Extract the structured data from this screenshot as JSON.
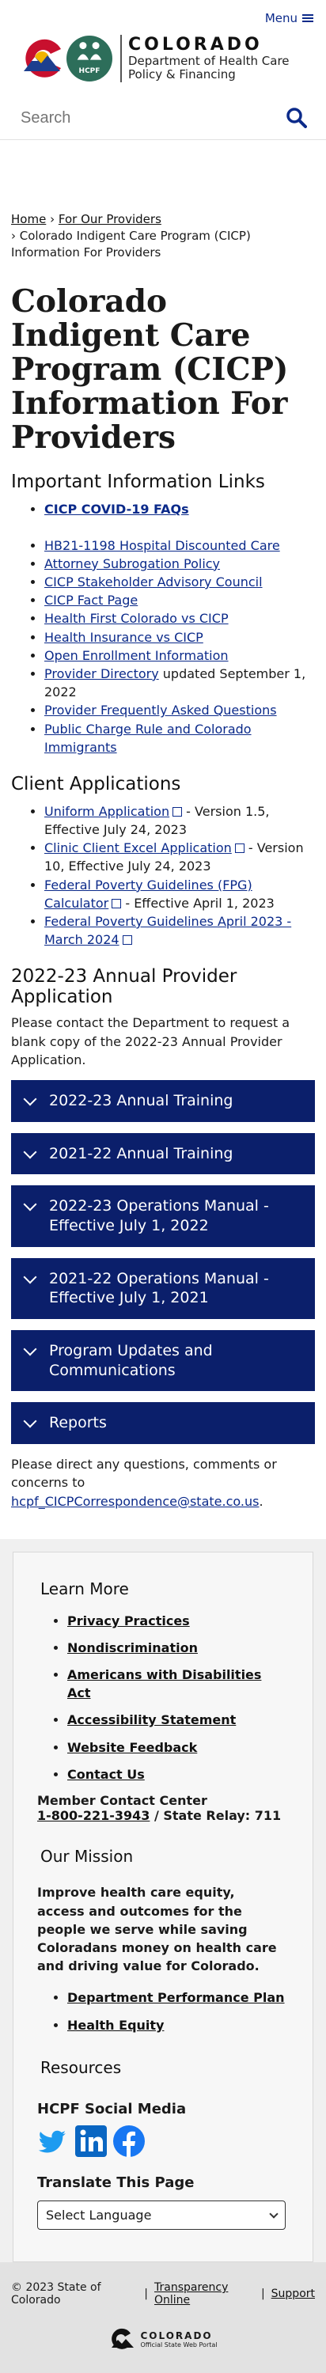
{
  "header": {
    "menu_label": "Menu",
    "logo_title": "COLORADO",
    "logo_sub1": "Department of Health Care",
    "logo_sub2": "Policy & Financing",
    "hcpf_label": "HCPF",
    "search_placeholder": "Search"
  },
  "breadcrumb": {
    "home": "Home",
    "sep": "›",
    "providers": "For Our Providers",
    "current": "› Colorado Indigent Care Program (CICP) Information For Providers"
  },
  "page_title": "Colorado Indigent Care Program (CICP) Information For Providers",
  "important": {
    "heading": "Important Information Links",
    "first": "CICP COVID-19 FAQs",
    "items": [
      "HB21-1198 Hospital Discounted Care",
      "Attorney Subrogation Policy",
      "CICP Stakeholder Advisory Council",
      "CICP Fact Page",
      "Health First Colorado vs CICP",
      "Health Insurance vs CICP",
      "Open Enrollment Information",
      "Provider Directory",
      "Provider Frequently Asked Questions",
      "Public Charge Rule and Colorado Immigrants"
    ],
    "directory_note": " updated September 1, 2022"
  },
  "client": {
    "heading": "Client Applications",
    "items": [
      {
        "link": "Uniform Application",
        "note": " - Version 1.5, Effective July 24, 2023"
      },
      {
        "link": "Clinic Client Excel Application",
        "note": " - Version 10, Effective July 24, 2023"
      },
      {
        "link": "Federal Poverty Guidelines (FPG) Calculator",
        "note": " - Effective April 1, 2023"
      },
      {
        "link": "Federal Poverty Guidelines April 2023 - March 2024",
        "note": ""
      }
    ]
  },
  "annual": {
    "heading": "2022-23 Annual Provider Application",
    "text": "Please contact the Department to request a blank copy of the 2022-23 Annual Provider Application."
  },
  "accordions": [
    "2022-23 Annual Training",
    "2021-22 Annual Training",
    "2022-23 Operations Manual - Effective July 1, 2022",
    "2021-22 Operations Manual - Effective July 1, 2021",
    "Program Updates and Communications",
    "Reports"
  ],
  "questions": {
    "text": "Please direct any questions, comments or concerns to ",
    "email": "hcpf_CICPCorrespondence@state.co.us",
    "end": "."
  },
  "footer": {
    "learn_more": "Learn More",
    "links": [
      "Privacy Practices",
      "Nondiscrimination",
      "Americans with Disabilities Act",
      "Accessibility Statement",
      "Website Feedback",
      "Contact Us"
    ],
    "member_center": "Member Contact Center",
    "phone": "1-800-221-3943",
    "relay": " / State Relay: 711",
    "mission_heading": "Our Mission",
    "mission_text": "Improve health care equity, access and outcomes for the people we serve while saving Coloradans money on health care and driving value for Colorado.",
    "mission_links": [
      "Department Performance Plan",
      "Health Equity"
    ],
    "resources": "Resources",
    "social_heading": "HCPF Social Media",
    "translate_heading": "Translate This Page",
    "select_language": "Select Language"
  },
  "bottom": {
    "copyright": "© 2023 State of Colorado",
    "transparency": "Transparency Online",
    "support": "Support",
    "co_title": "COLORADO",
    "co_sub": "Official State Web Portal"
  },
  "colors": {
    "brand_blue": "#0b1f6b",
    "link_blue": "#0b2a8a",
    "hcpf_green": "#2d6e5a"
  }
}
